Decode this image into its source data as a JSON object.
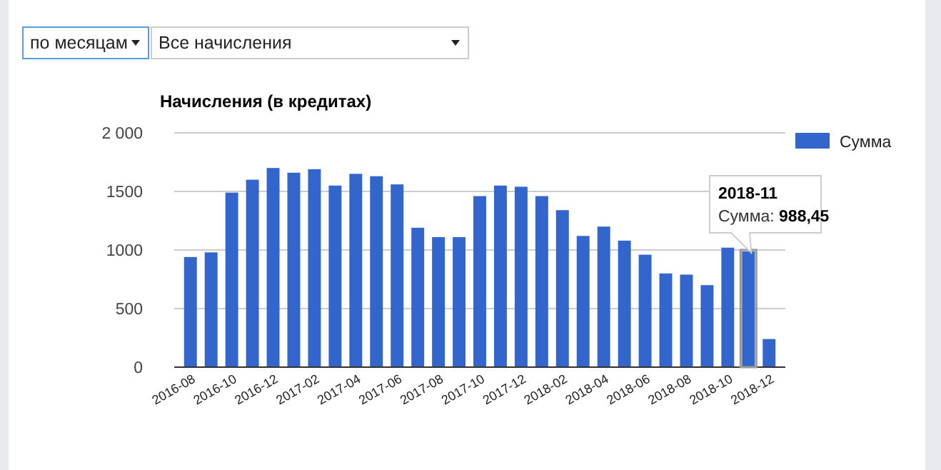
{
  "chart_data": {
    "type": "bar",
    "title": "Начисления (в кредитах)",
    "categories": [
      "2016-08",
      null,
      "2016-10",
      null,
      "2016-12",
      null,
      "2017-02",
      null,
      "2017-04",
      null,
      "2017-06",
      null,
      "2017-08",
      null,
      "2017-10",
      null,
      "2017-12",
      null,
      "2018-02",
      null,
      "2018-04",
      null,
      "2018-06",
      null,
      "2018-08",
      null,
      "2018-10",
      null,
      "2018-12"
    ],
    "series": [
      {
        "name": "Сумма",
        "color": "#3366cc",
        "values": [
          940,
          980,
          1490,
          1600,
          1700,
          1660,
          1690,
          1550,
          1650,
          1630,
          1560,
          1190,
          1110,
          1110,
          1460,
          1550,
          1540,
          1460,
          1340,
          1120,
          1200,
          1080,
          960,
          800,
          790,
          700,
          1020,
          988.45,
          240
        ]
      }
    ],
    "ylim": [
      0,
      2000
    ],
    "yticks": [
      0,
      500,
      1000,
      1500,
      {
        "value": 2000,
        "label": "2 000"
      }
    ],
    "grid": "y",
    "legend": "right",
    "annotations": [
      "по месяцам",
      "Все начисления",
      "2018-11\nСумма: 988,45"
    ]
  }
}
